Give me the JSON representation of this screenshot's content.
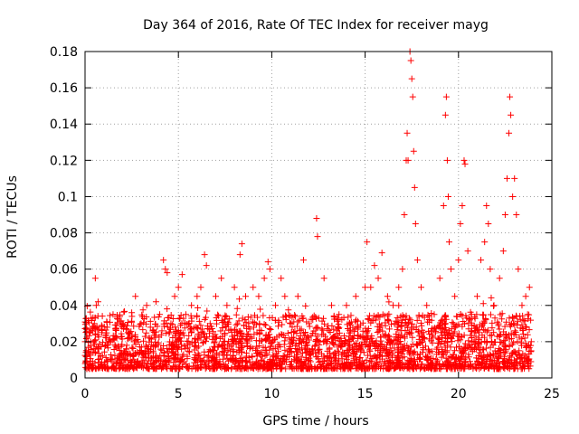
{
  "chart_data": {
    "type": "scatter",
    "title": "Day 364 of 2016, Rate Of TEC Index for receiver mayg",
    "xlabel": "GPS time / hours",
    "ylabel": "ROTI / TECUs",
    "xlim": [
      0,
      25
    ],
    "ylim": [
      0,
      0.18
    ],
    "x_ticks": [
      0,
      5,
      10,
      15,
      20,
      25
    ],
    "x_tick_labels": [
      "0",
      "5",
      "10",
      "15",
      "20",
      "25"
    ],
    "y_ticks": [
      0,
      0.02,
      0.04,
      0.06,
      0.08,
      0.1,
      0.12,
      0.14,
      0.16,
      0.18
    ],
    "y_tick_labels": [
      "0",
      "0.02",
      "0.04",
      "0.06",
      "0.08",
      "0.1",
      "0.12",
      "0.14",
      "0.16",
      "0.18"
    ],
    "grid": true,
    "marker": "+",
    "color": "#ff0000",
    "points": [
      [
        0.1,
        0.012
      ],
      [
        0.3,
        0.02
      ],
      [
        0.5,
        0.03
      ],
      [
        0.6,
        0.04
      ],
      [
        0.7,
        0.042
      ],
      [
        0.55,
        0.055
      ],
      [
        0.9,
        0.025
      ],
      [
        1.2,
        0.018
      ],
      [
        1.5,
        0.035
      ],
      [
        1.7,
        0.022
      ],
      [
        2.0,
        0.03
      ],
      [
        2.3,
        0.025
      ],
      [
        2.5,
        0.036
      ],
      [
        2.7,
        0.045
      ],
      [
        3.0,
        0.03
      ],
      [
        3.3,
        0.04
      ],
      [
        3.5,
        0.028
      ],
      [
        3.8,
        0.042
      ],
      [
        4.0,
        0.035
      ],
      [
        4.2,
        0.065
      ],
      [
        4.3,
        0.06
      ],
      [
        4.4,
        0.058
      ],
      [
        4.6,
        0.03
      ],
      [
        4.8,
        0.045
      ],
      [
        5.0,
        0.05
      ],
      [
        5.2,
        0.057
      ],
      [
        5.4,
        0.035
      ],
      [
        5.7,
        0.04
      ],
      [
        6.0,
        0.045
      ],
      [
        6.2,
        0.05
      ],
      [
        6.4,
        0.068
      ],
      [
        6.5,
        0.062
      ],
      [
        6.7,
        0.03
      ],
      [
        7.0,
        0.045
      ],
      [
        7.3,
        0.055
      ],
      [
        7.6,
        0.04
      ],
      [
        8.0,
        0.05
      ],
      [
        8.3,
        0.068
      ],
      [
        8.4,
        0.074
      ],
      [
        8.6,
        0.045
      ],
      [
        9.0,
        0.05
      ],
      [
        9.3,
        0.045
      ],
      [
        9.6,
        0.055
      ],
      [
        9.8,
        0.064
      ],
      [
        9.9,
        0.06
      ],
      [
        10.2,
        0.04
      ],
      [
        10.5,
        0.055
      ],
      [
        10.7,
        0.045
      ],
      [
        11.0,
        0.03
      ],
      [
        11.4,
        0.045
      ],
      [
        11.7,
        0.065
      ],
      [
        12.0,
        0.03
      ],
      [
        12.4,
        0.088
      ],
      [
        12.45,
        0.078
      ],
      [
        12.8,
        0.055
      ],
      [
        13.2,
        0.04
      ],
      [
        13.6,
        0.035
      ],
      [
        14.0,
        0.04
      ],
      [
        14.5,
        0.045
      ],
      [
        15.0,
        0.05
      ],
      [
        15.1,
        0.075
      ],
      [
        15.3,
        0.05
      ],
      [
        15.5,
        0.062
      ],
      [
        15.7,
        0.055
      ],
      [
        15.9,
        0.069
      ],
      [
        16.2,
        0.045
      ],
      [
        16.5,
        0.04
      ],
      [
        16.8,
        0.05
      ],
      [
        17.0,
        0.06
      ],
      [
        17.1,
        0.09
      ],
      [
        17.2,
        0.12
      ],
      [
        17.25,
        0.135
      ],
      [
        17.3,
        0.12
      ],
      [
        17.4,
        0.18
      ],
      [
        17.45,
        0.175
      ],
      [
        17.5,
        0.165
      ],
      [
        17.55,
        0.155
      ],
      [
        17.6,
        0.125
      ],
      [
        17.65,
        0.105
      ],
      [
        17.7,
        0.085
      ],
      [
        17.8,
        0.065
      ],
      [
        18.0,
        0.05
      ],
      [
        18.3,
        0.04
      ],
      [
        18.7,
        0.035
      ],
      [
        19.0,
        0.055
      ],
      [
        19.2,
        0.095
      ],
      [
        19.3,
        0.145
      ],
      [
        19.35,
        0.155
      ],
      [
        19.4,
        0.12
      ],
      [
        19.45,
        0.1
      ],
      [
        19.5,
        0.075
      ],
      [
        19.6,
        0.06
      ],
      [
        19.8,
        0.045
      ],
      [
        20.0,
        0.065
      ],
      [
        20.1,
        0.085
      ],
      [
        20.2,
        0.095
      ],
      [
        20.3,
        0.12
      ],
      [
        20.35,
        0.118
      ],
      [
        20.5,
        0.07
      ],
      [
        20.7,
        0.035
      ],
      [
        21.0,
        0.045
      ],
      [
        21.2,
        0.065
      ],
      [
        21.4,
        0.075
      ],
      [
        21.5,
        0.095
      ],
      [
        21.6,
        0.085
      ],
      [
        21.7,
        0.06
      ],
      [
        21.9,
        0.04
      ],
      [
        22.2,
        0.055
      ],
      [
        22.4,
        0.07
      ],
      [
        22.5,
        0.09
      ],
      [
        22.6,
        0.11
      ],
      [
        22.7,
        0.135
      ],
      [
        22.75,
        0.155
      ],
      [
        22.8,
        0.145
      ],
      [
        22.9,
        0.1
      ],
      [
        23.0,
        0.11
      ],
      [
        23.1,
        0.09
      ],
      [
        23.2,
        0.06
      ],
      [
        23.4,
        0.04
      ],
      [
        23.6,
        0.045
      ],
      [
        23.7,
        0.035
      ],
      [
        23.8,
        0.05
      ],
      [
        23.9,
        0.02
      ]
    ]
  }
}
